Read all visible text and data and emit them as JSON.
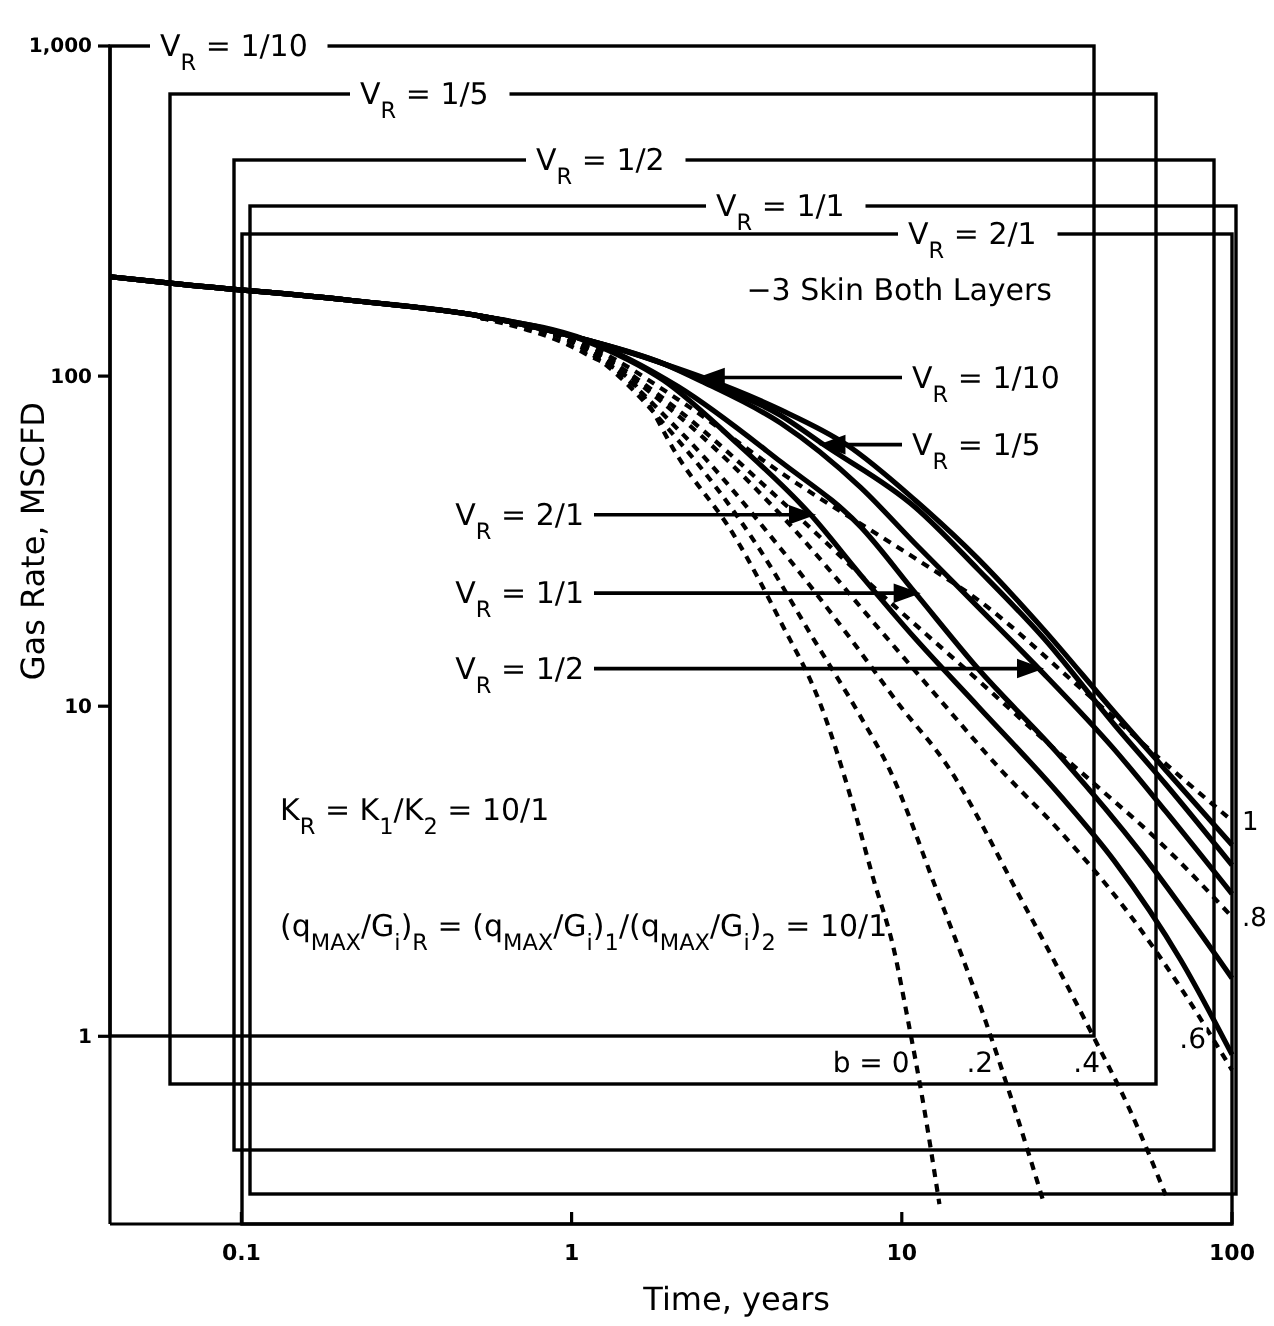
{
  "chart_data": {
    "type": "line",
    "xlabel": "Time, years",
    "ylabel": "Gas Rate, MSCFD",
    "log": "xy",
    "xlim": [
      0.04,
      100
    ],
    "ylim": [
      0.27,
      1000
    ],
    "xticks": [
      0.1,
      1,
      10,
      100
    ],
    "yticks": [
      1,
      10,
      100,
      {
        "value": 1000,
        "label": "1,000"
      }
    ],
    "annotations": [
      "V$_{R}$ = 1/10",
      "V$_{R}$ = 1/5",
      "V$_{R}$ = 1/2",
      "V$_{R}$ = 1/1",
      "V$_{R}$ = 2/1",
      "−3 Skin Both Layers",
      {
        "text": "V$_{R}$ = 1/10",
        "x": 2.5,
        "y": 99
      },
      {
        "text": "V$_{R}$ = 1/5",
        "x": 5.8,
        "y": 62
      },
      {
        "text": "V$_{R}$ = 2/1",
        "x": 5.3,
        "y": 38
      },
      {
        "text": "V$_{R}$ = 1/1",
        "x": 11,
        "y": 22
      },
      {
        "text": "V$_{R}$ = 1/2",
        "x": 26,
        "y": 13
      },
      "K$_{R}$ = K$_{1}$/K$_{2}$ = 10/1",
      "(q$_{MAX}$/G$_{i}$)$_{R}$ = (q$_{MAX}$/G$_{i}$)$_{1}$/(q$_{MAX}$/G$_{i}$)$_{2}$ = 10/1"
    ],
    "series": [
      {
        "color": "#000000",
        "line_style": "solid",
        "x": [
          0.04,
          0.065,
          0.21,
          0.53,
          1.1,
          1.9,
          2.5,
          4.3,
          6.8,
          11,
          17,
          27,
          44,
          63,
          100
        ],
        "values": [
          200,
          190,
          170,
          152,
          129,
          109,
          99,
          79,
          62,
          42,
          28,
          17,
          9.6,
          6.4,
          3.8
        ]
      },
      {
        "color": "#000000",
        "line_style": "solid",
        "x": [
          0.04,
          0.065,
          0.21,
          0.53,
          1.1,
          1.9,
          2.5,
          4.3,
          5.8,
          11,
          17,
          27,
          44,
          63,
          100
        ],
        "values": [
          200,
          190,
          170,
          152,
          129,
          109,
          97,
          76,
          62,
          40,
          26,
          16,
          8.8,
          5.8,
          3.3
        ]
      },
      {
        "color": "#000000",
        "line_style": "solid",
        "x": [
          0.04,
          0.065,
          0.21,
          0.53,
          1.1,
          1.9,
          3.2,
          5.3,
          7.5,
          11,
          17,
          30,
          44,
          70,
          100
        ],
        "values": [
          200,
          190,
          170,
          152,
          128,
          97,
          62,
          38,
          25,
          16,
          10,
          5.4,
          3.4,
          1.7,
          0.88
        ]
      },
      {
        "color": "#000000",
        "line_style": "solid",
        "x": [
          0.04,
          0.065,
          0.21,
          0.53,
          1.1,
          2.1,
          4.3,
          7.5,
          11,
          17,
          30,
          53,
          100
        ],
        "values": [
          200,
          190,
          170,
          152,
          129,
          93,
          55,
          35,
          22,
          13,
          7.1,
          3.6,
          1.5
        ]
      },
      {
        "color": "#000000",
        "line_style": "solid",
        "x": [
          0.04,
          0.065,
          0.21,
          0.53,
          1.1,
          1.9,
          2.5,
          4.3,
          7.5,
          11,
          17,
          26,
          44,
          63,
          100
        ],
        "values": [
          200,
          190,
          170,
          152,
          129,
          109,
          96,
          72,
          46,
          31,
          20,
          13,
          7.4,
          4.8,
          2.7
        ]
      },
      {
        "name": "b = 0",
        "color": "#000000",
        "line_style": "dashed",
        "x": [
          0.53,
          1.1,
          1.6,
          2.1,
          3.1,
          4.3,
          5.7,
          7,
          8.2,
          9.5,
          10.3,
          11.7,
          13
        ],
        "values": [
          150,
          117,
          91,
          57,
          33,
          18,
          10,
          5.3,
          3.0,
          1.8,
          1.2,
          0.6,
          0.31
        ]
      },
      {
        "name": ".2",
        "color": "#000000",
        "line_style": "dashed",
        "x": [
          0.53,
          1.1,
          2.1,
          3.7,
          5.4,
          7.5,
          9.2,
          12.7,
          18,
          22,
          27
        ],
        "values": [
          150,
          120,
          64,
          30,
          16,
          9.3,
          6.4,
          2.8,
          1.1,
          0.6,
          0.31
        ]
      },
      {
        "name": ".4",
        "color": "#000000",
        "line_style": "dashed",
        "x": [
          0.53,
          1.1,
          2.1,
          4.3,
          7,
          9.9,
          13.6,
          23,
          38,
          49,
          63
        ],
        "values": [
          150,
          122,
          69,
          30,
          16,
          10,
          6.7,
          2.6,
          1.0,
          0.6,
          0.33
        ]
      },
      {
        "name": ".6",
        "color": "#000000",
        "line_style": "dashed",
        "x": [
          0.53,
          1.1,
          2.1,
          4.3,
          8.6,
          13,
          20,
          30,
          48,
          70,
          100
        ],
        "values": [
          150,
          122,
          76,
          38,
          17,
          10.5,
          6.4,
          4.2,
          2.4,
          1.4,
          0.79
        ]
      },
      {
        "name": ".8",
        "color": "#000000",
        "line_style": "dashed",
        "x": [
          0.53,
          1.1,
          2.1,
          4.3,
          8.6,
          17,
          27,
          40,
          60,
          100
        ],
        "values": [
          150,
          123,
          79,
          42,
          22,
          12,
          7.9,
          5.6,
          3.9,
          2.3
        ]
      },
      {
        "name": "1",
        "color": "#000000",
        "line_style": "dashed",
        "x": [
          0.53,
          1.1,
          2.1,
          4.3,
          11,
          17,
          36,
          70,
          100
        ],
        "values": [
          150,
          125,
          85,
          51,
          28,
          21,
          11,
          6.1,
          4.5
        ]
      }
    ]
  }
}
